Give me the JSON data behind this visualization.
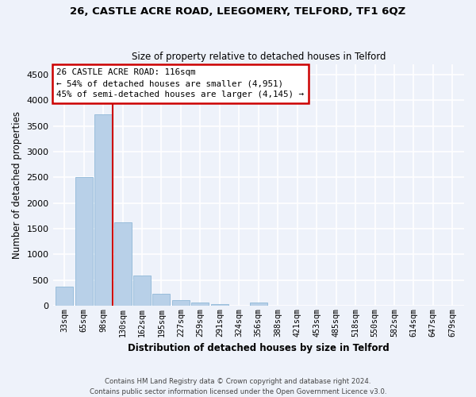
{
  "title1": "26, CASTLE ACRE ROAD, LEEGOMERY, TELFORD, TF1 6QZ",
  "title2": "Size of property relative to detached houses in Telford",
  "xlabel": "Distribution of detached houses by size in Telford",
  "ylabel": "Number of detached properties",
  "categories": [
    "33sqm",
    "65sqm",
    "98sqm",
    "130sqm",
    "162sqm",
    "195sqm",
    "227sqm",
    "259sqm",
    "291sqm",
    "324sqm",
    "356sqm",
    "388sqm",
    "421sqm",
    "453sqm",
    "485sqm",
    "518sqm",
    "550sqm",
    "582sqm",
    "614sqm",
    "647sqm",
    "679sqm"
  ],
  "values": [
    370,
    2510,
    3720,
    1630,
    590,
    230,
    105,
    60,
    35,
    0,
    55,
    0,
    0,
    0,
    0,
    0,
    0,
    0,
    0,
    0,
    0
  ],
  "bar_color": "#b8d0e8",
  "bar_edge_color": "#90b8d8",
  "annotation_text1": "26 CASTLE ACRE ROAD: 116sqm",
  "annotation_text2": "← 54% of detached houses are smaller (4,951)",
  "annotation_text3": "45% of semi-detached houses are larger (4,145) →",
  "annotation_box_color": "#cc0000",
  "ylim": [
    0,
    4700
  ],
  "yticks": [
    0,
    500,
    1000,
    1500,
    2000,
    2500,
    3000,
    3500,
    4000,
    4500
  ],
  "footer": "Contains HM Land Registry data © Crown copyright and database right 2024.\nContains public sector information licensed under the Open Government Licence v3.0.",
  "background_color": "#eef2fa",
  "grid_color": "#ffffff"
}
